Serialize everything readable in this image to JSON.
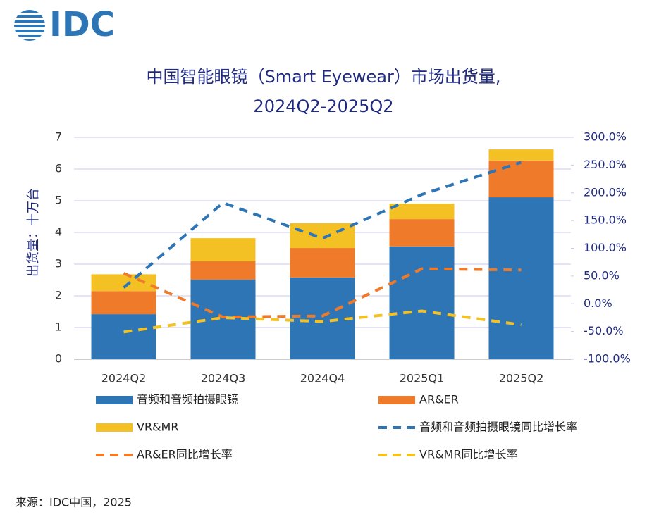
{
  "logo": "IDC",
  "source": "来源：IDC中国，2025",
  "chart_data": {
    "type": "bar",
    "stacked": true,
    "title": [
      "中国智能眼镜（Smart Eyewear）市场出货量,",
      "2024Q2-2025Q2"
    ],
    "y_label": "出货量：十万台",
    "categories": [
      "2024Q2",
      "2024Q3",
      "2024Q4",
      "2025Q1",
      "2025Q2"
    ],
    "ylim": [
      0,
      7
    ],
    "yticks": [
      0,
      1,
      2,
      3,
      4,
      5,
      6,
      7
    ],
    "y2lim": [
      -100,
      300
    ],
    "y2ticks": [
      {
        "value": -100,
        "label": "-100.0%"
      },
      {
        "value": -50,
        "label": "-50.0%"
      },
      {
        "value": 0,
        "label": "0.0%"
      },
      {
        "value": 50,
        "label": "50.0%"
      },
      {
        "value": 100,
        "label": "100.0%"
      },
      {
        "value": 150,
        "label": "150.0%"
      },
      {
        "value": 200,
        "label": "200.0%"
      },
      {
        "value": 250,
        "label": "250.0%"
      },
      {
        "value": 300,
        "label": "300.0%"
      }
    ],
    "grid": true,
    "series": [
      {
        "name": "音频和音频拍摄眼镜",
        "type": "bar",
        "color": "#2e75b6",
        "values": [
          1.42,
          2.51,
          2.58,
          3.56,
          5.11
        ]
      },
      {
        "name": "AR&ER",
        "type": "bar",
        "color": "#ef7b2a",
        "values": [
          0.73,
          0.58,
          0.93,
          0.86,
          1.16
        ]
      },
      {
        "name": "VR&MR",
        "type": "bar",
        "color": "#f4c125",
        "values": [
          0.53,
          0.73,
          0.78,
          0.49,
          0.35
        ]
      },
      {
        "name": "音频和音频拍摄眼镜同比增长率",
        "type": "line",
        "axis": "y2",
        "color": "#2e75b6",
        "values": [
          29,
          182,
          118,
          197,
          255
        ]
      },
      {
        "name": "AR&ER同比增长率",
        "type": "line",
        "axis": "y2",
        "color": "#ef7b2a",
        "values": [
          55,
          -24,
          -22,
          63,
          61
        ]
      },
      {
        "name": "VR&MR同比增长率",
        "type": "line",
        "axis": "y2",
        "color": "#f4c125",
        "values": [
          -51,
          -25,
          -32,
          -13,
          -38
        ]
      }
    ]
  }
}
